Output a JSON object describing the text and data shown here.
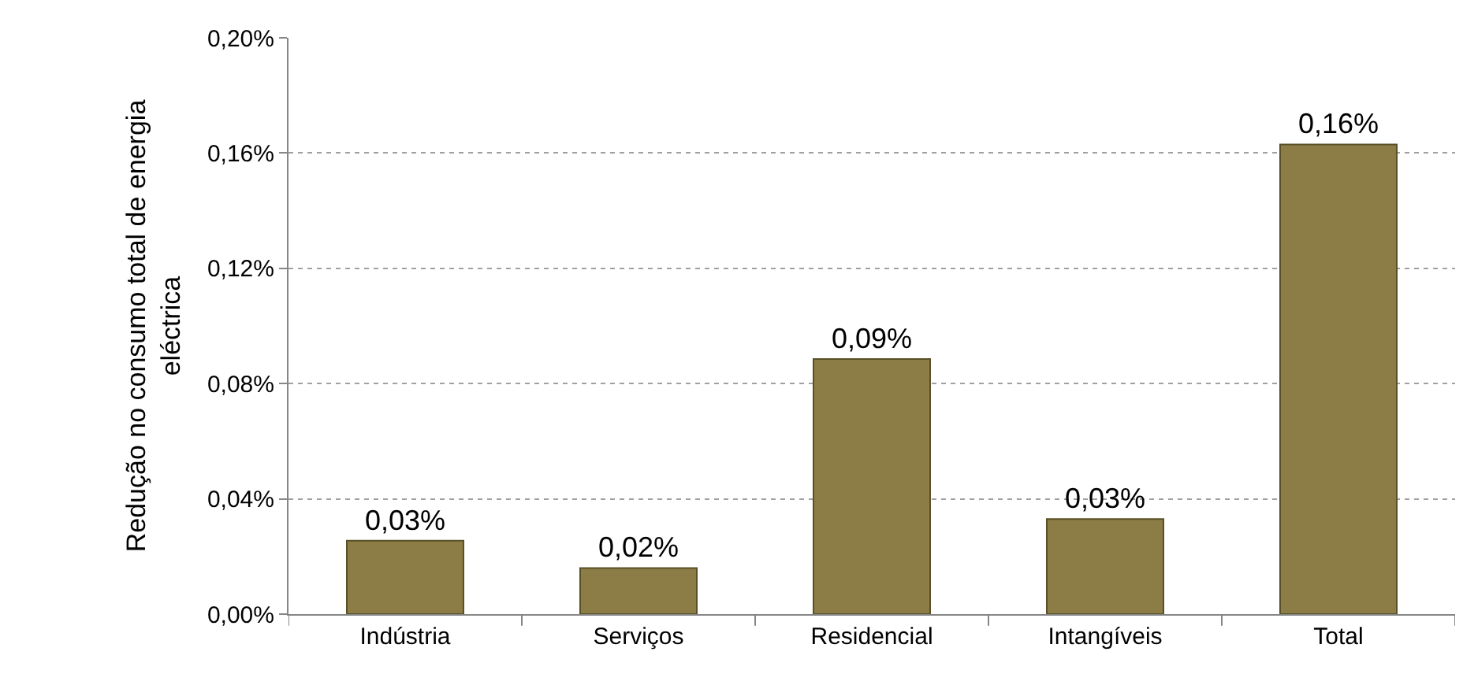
{
  "chart_data": {
    "type": "bar",
    "ylabel": "Redução no consumo total de energia\neléctrica",
    "categories": [
      "Indústria",
      "Serviços",
      "Residencial",
      "Intangíveis",
      "Total"
    ],
    "values": [
      0.0255,
      0.016,
      0.0885,
      0.033,
      0.163
    ],
    "value_labels": [
      "0,03%",
      "0,02%",
      "0,09%",
      "0,03%",
      "0,16%"
    ],
    "color": "#8b7d45",
    "ylim": [
      0,
      0.2
    ],
    "yticks": [
      {
        "value": 0,
        "label": "0,00%"
      },
      {
        "value": 0.04,
        "label": "0,04%"
      },
      {
        "value": 0.08,
        "label": "0,08%"
      },
      {
        "value": 0.12,
        "label": "0,12%"
      },
      {
        "value": 0.16,
        "label": "0,16%"
      },
      {
        "value": 0.2,
        "label": "0,20%"
      }
    ],
    "grid": "y",
    "legend": false
  }
}
